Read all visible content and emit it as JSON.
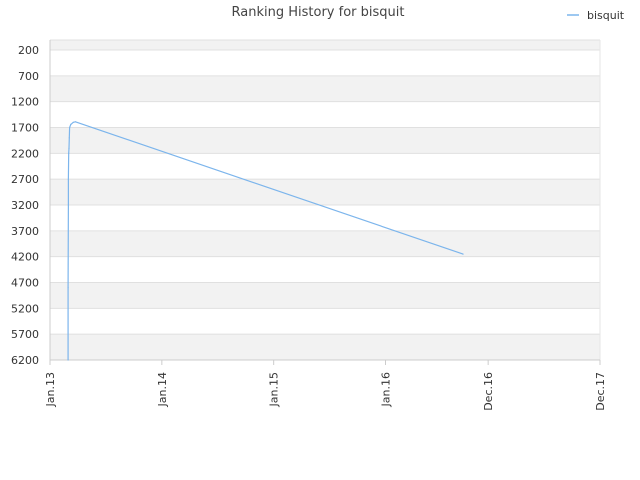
{
  "chart_data": {
    "type": "line",
    "title": "Ranking History for bisquit",
    "xlabel": "",
    "ylabel": "",
    "y_inverted": true,
    "ylim": [
      200,
      6200
    ],
    "xlim": [
      "2013-01-01",
      "2017-12-01"
    ],
    "y_ticks": [
      200,
      700,
      1200,
      1700,
      2200,
      2700,
      3200,
      3700,
      4200,
      4700,
      5200,
      5700,
      6200
    ],
    "y_tick_labels": [
      "200",
      "700",
      "1200",
      "1700",
      "2200",
      "2700",
      "3200",
      "3700",
      "4200",
      "4700",
      "5200",
      "5700",
      "6200"
    ],
    "x_ticks": [
      "2013-01-01",
      "2014-01-01",
      "2015-01-01",
      "2016-01-01",
      "2016-12-01",
      "2017-12-01"
    ],
    "x_tick_labels": [
      "Jan.13",
      "Jan.14",
      "Jan.15",
      "Jan.16",
      "Dec.16",
      "Dec.17"
    ],
    "grid": true,
    "alternating_bands": true,
    "legend_position": "top-right",
    "series": [
      {
        "name": "bisquit",
        "color": "#7cb5ec",
        "points": [
          {
            "x": "2013-03-01",
            "y": 6200
          },
          {
            "x": "2013-03-01",
            "y": 4800
          },
          {
            "x": "2013-03-02",
            "y": 3200
          },
          {
            "x": "2013-03-02",
            "y": 2700
          },
          {
            "x": "2013-03-03",
            "y": 2200
          },
          {
            "x": "2013-03-04",
            "y": 2100
          },
          {
            "x": "2013-03-05",
            "y": 1900
          },
          {
            "x": "2013-03-06",
            "y": 1700
          },
          {
            "x": "2013-03-10",
            "y": 1640
          },
          {
            "x": "2013-03-18",
            "y": 1600
          },
          {
            "x": "2013-03-25",
            "y": 1590
          },
          {
            "x": "2016-09-10",
            "y": 4150
          }
        ]
      }
    ]
  }
}
